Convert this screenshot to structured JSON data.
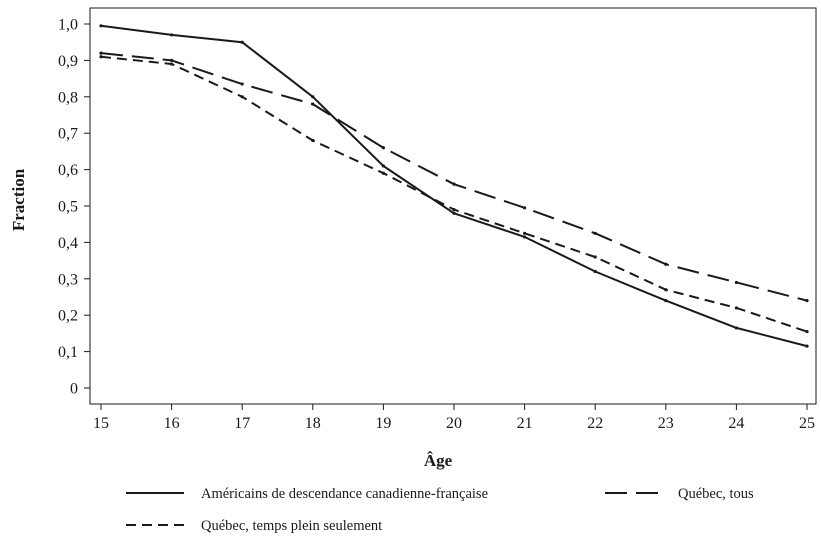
{
  "chart_data": {
    "type": "line",
    "xlabel": "Âge",
    "ylabel": "Fraction",
    "x": [
      15,
      16,
      17,
      18,
      19,
      20,
      21,
      22,
      23,
      24,
      25
    ],
    "xlim": [
      15,
      25
    ],
    "ylim": [
      0,
      1.0
    ],
    "x_ticks": [
      "15",
      "16",
      "17",
      "18",
      "19",
      "20",
      "21",
      "22",
      "23",
      "24",
      "25"
    ],
    "y_ticks": [
      "0",
      "0,1",
      "0,2",
      "0,3",
      "0,4",
      "0,5",
      "0,6",
      "0,7",
      "0,8",
      "0,9",
      "1,0"
    ],
    "grid": false,
    "legend_position": "bottom",
    "series": [
      {
        "name": "Américains de descendance canadienne-française",
        "line_style": "solid",
        "color": "#1a1a1a",
        "values": [
          0.995,
          0.97,
          0.95,
          0.8,
          0.61,
          0.48,
          0.415,
          0.32,
          0.24,
          0.165,
          0.115
        ]
      },
      {
        "name": "Québec, tous",
        "line_style": "long-dash",
        "color": "#1a1a1a",
        "values": [
          0.92,
          0.9,
          0.835,
          0.78,
          0.66,
          0.56,
          0.495,
          0.425,
          0.34,
          0.29,
          0.24
        ]
      },
      {
        "name": "Québec, temps plein seulement",
        "line_style": "short-dash",
        "color": "#1a1a1a",
        "values": [
          0.91,
          0.89,
          0.8,
          0.68,
          0.59,
          0.49,
          0.425,
          0.36,
          0.27,
          0.22,
          0.155
        ]
      }
    ]
  }
}
